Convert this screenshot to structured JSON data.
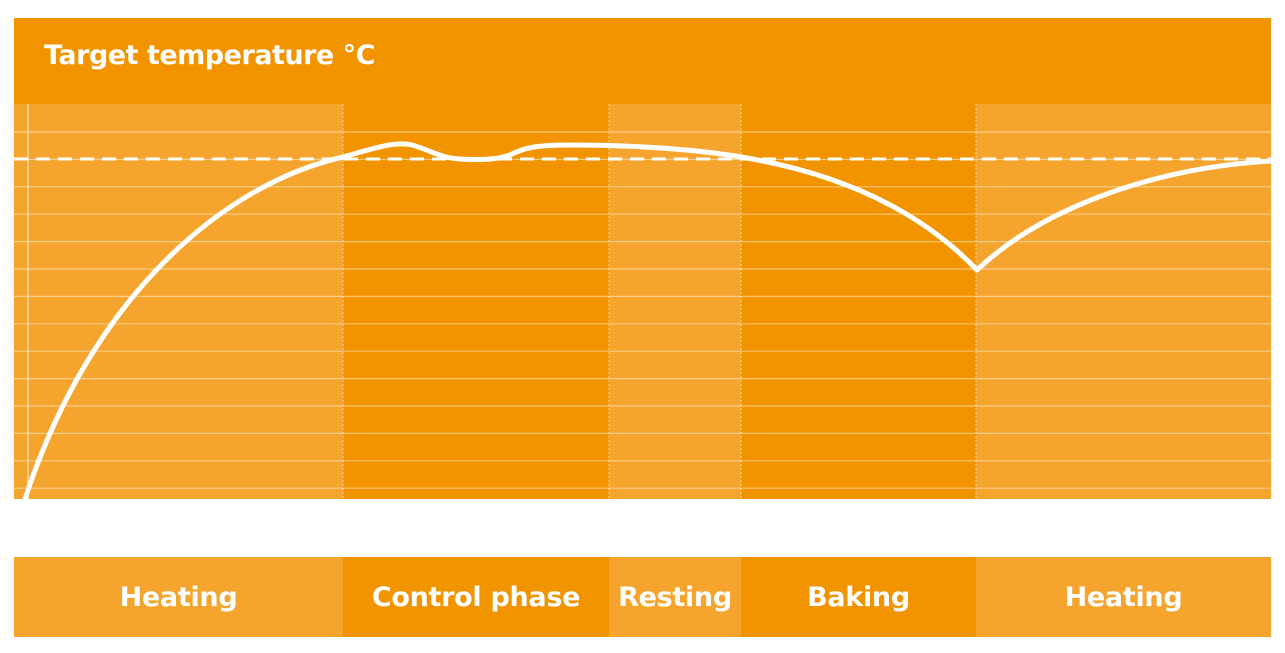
{
  "header": {
    "title": "Target temperature °C"
  },
  "colors": {
    "dark_orange": "#f29400",
    "light_orange": "#f5a42d",
    "line": "#ffffff",
    "grid": "rgba(255,255,255,0.45)"
  },
  "phases": [
    {
      "label": "Heating",
      "shade": "light"
    },
    {
      "label": "Control phase",
      "shade": "dark"
    },
    {
      "label": "Resting",
      "shade": "light"
    },
    {
      "label": "Baking",
      "shade": "dark"
    },
    {
      "label": "Heating",
      "shade": "light"
    }
  ]
}
